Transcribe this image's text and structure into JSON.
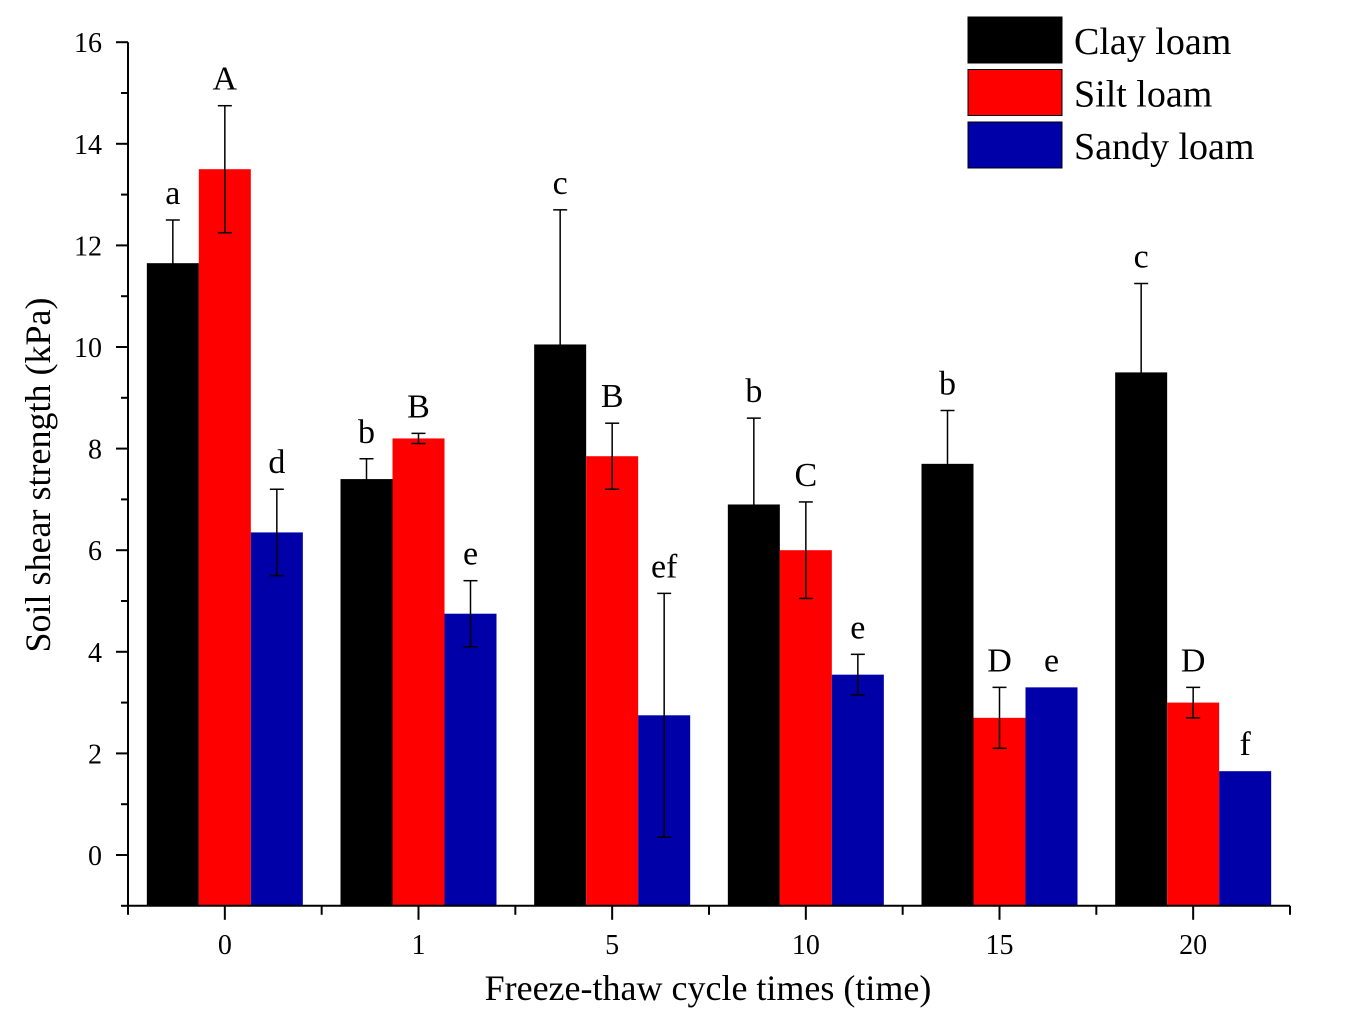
{
  "chart_data": {
    "type": "bar",
    "title": "",
    "xlabel": "Freeze-thaw cycle times (time)",
    "ylabel": "Soil shear strength (kPa)",
    "ylim": [
      -1,
      16
    ],
    "yticks": [
      0,
      2,
      4,
      6,
      8,
      10,
      12,
      14,
      16
    ],
    "categories": [
      "0",
      "1",
      "5",
      "10",
      "15",
      "20"
    ],
    "legend_position": "top-right",
    "series": [
      {
        "name": "Clay loam",
        "color": "#000000",
        "values": [
          11.65,
          7.4,
          10.05,
          6.9,
          7.7,
          9.5
        ],
        "errors": [
          0.85,
          0.4,
          2.65,
          1.7,
          1.05,
          1.75
        ],
        "letters": [
          "a",
          "b",
          "c",
          "b",
          "b",
          "c"
        ]
      },
      {
        "name": "Silt loam",
        "color": "#ff0000",
        "values": [
          13.5,
          8.2,
          7.85,
          6.0,
          2.7,
          3.0
        ],
        "errors": [
          1.25,
          0.1,
          0.65,
          0.95,
          0.6,
          0.3
        ],
        "letters": [
          "A",
          "B",
          "B",
          "C",
          "D",
          "D"
        ]
      },
      {
        "name": "Sandy loam",
        "color": "#0000a8",
        "values": [
          6.35,
          4.75,
          2.75,
          3.55,
          3.3,
          1.65
        ],
        "errors": [
          0.85,
          0.65,
          2.4,
          0.4,
          0.0,
          0.0
        ],
        "letters": [
          "d",
          "e",
          "ef",
          "e",
          "e",
          "f"
        ]
      }
    ]
  }
}
